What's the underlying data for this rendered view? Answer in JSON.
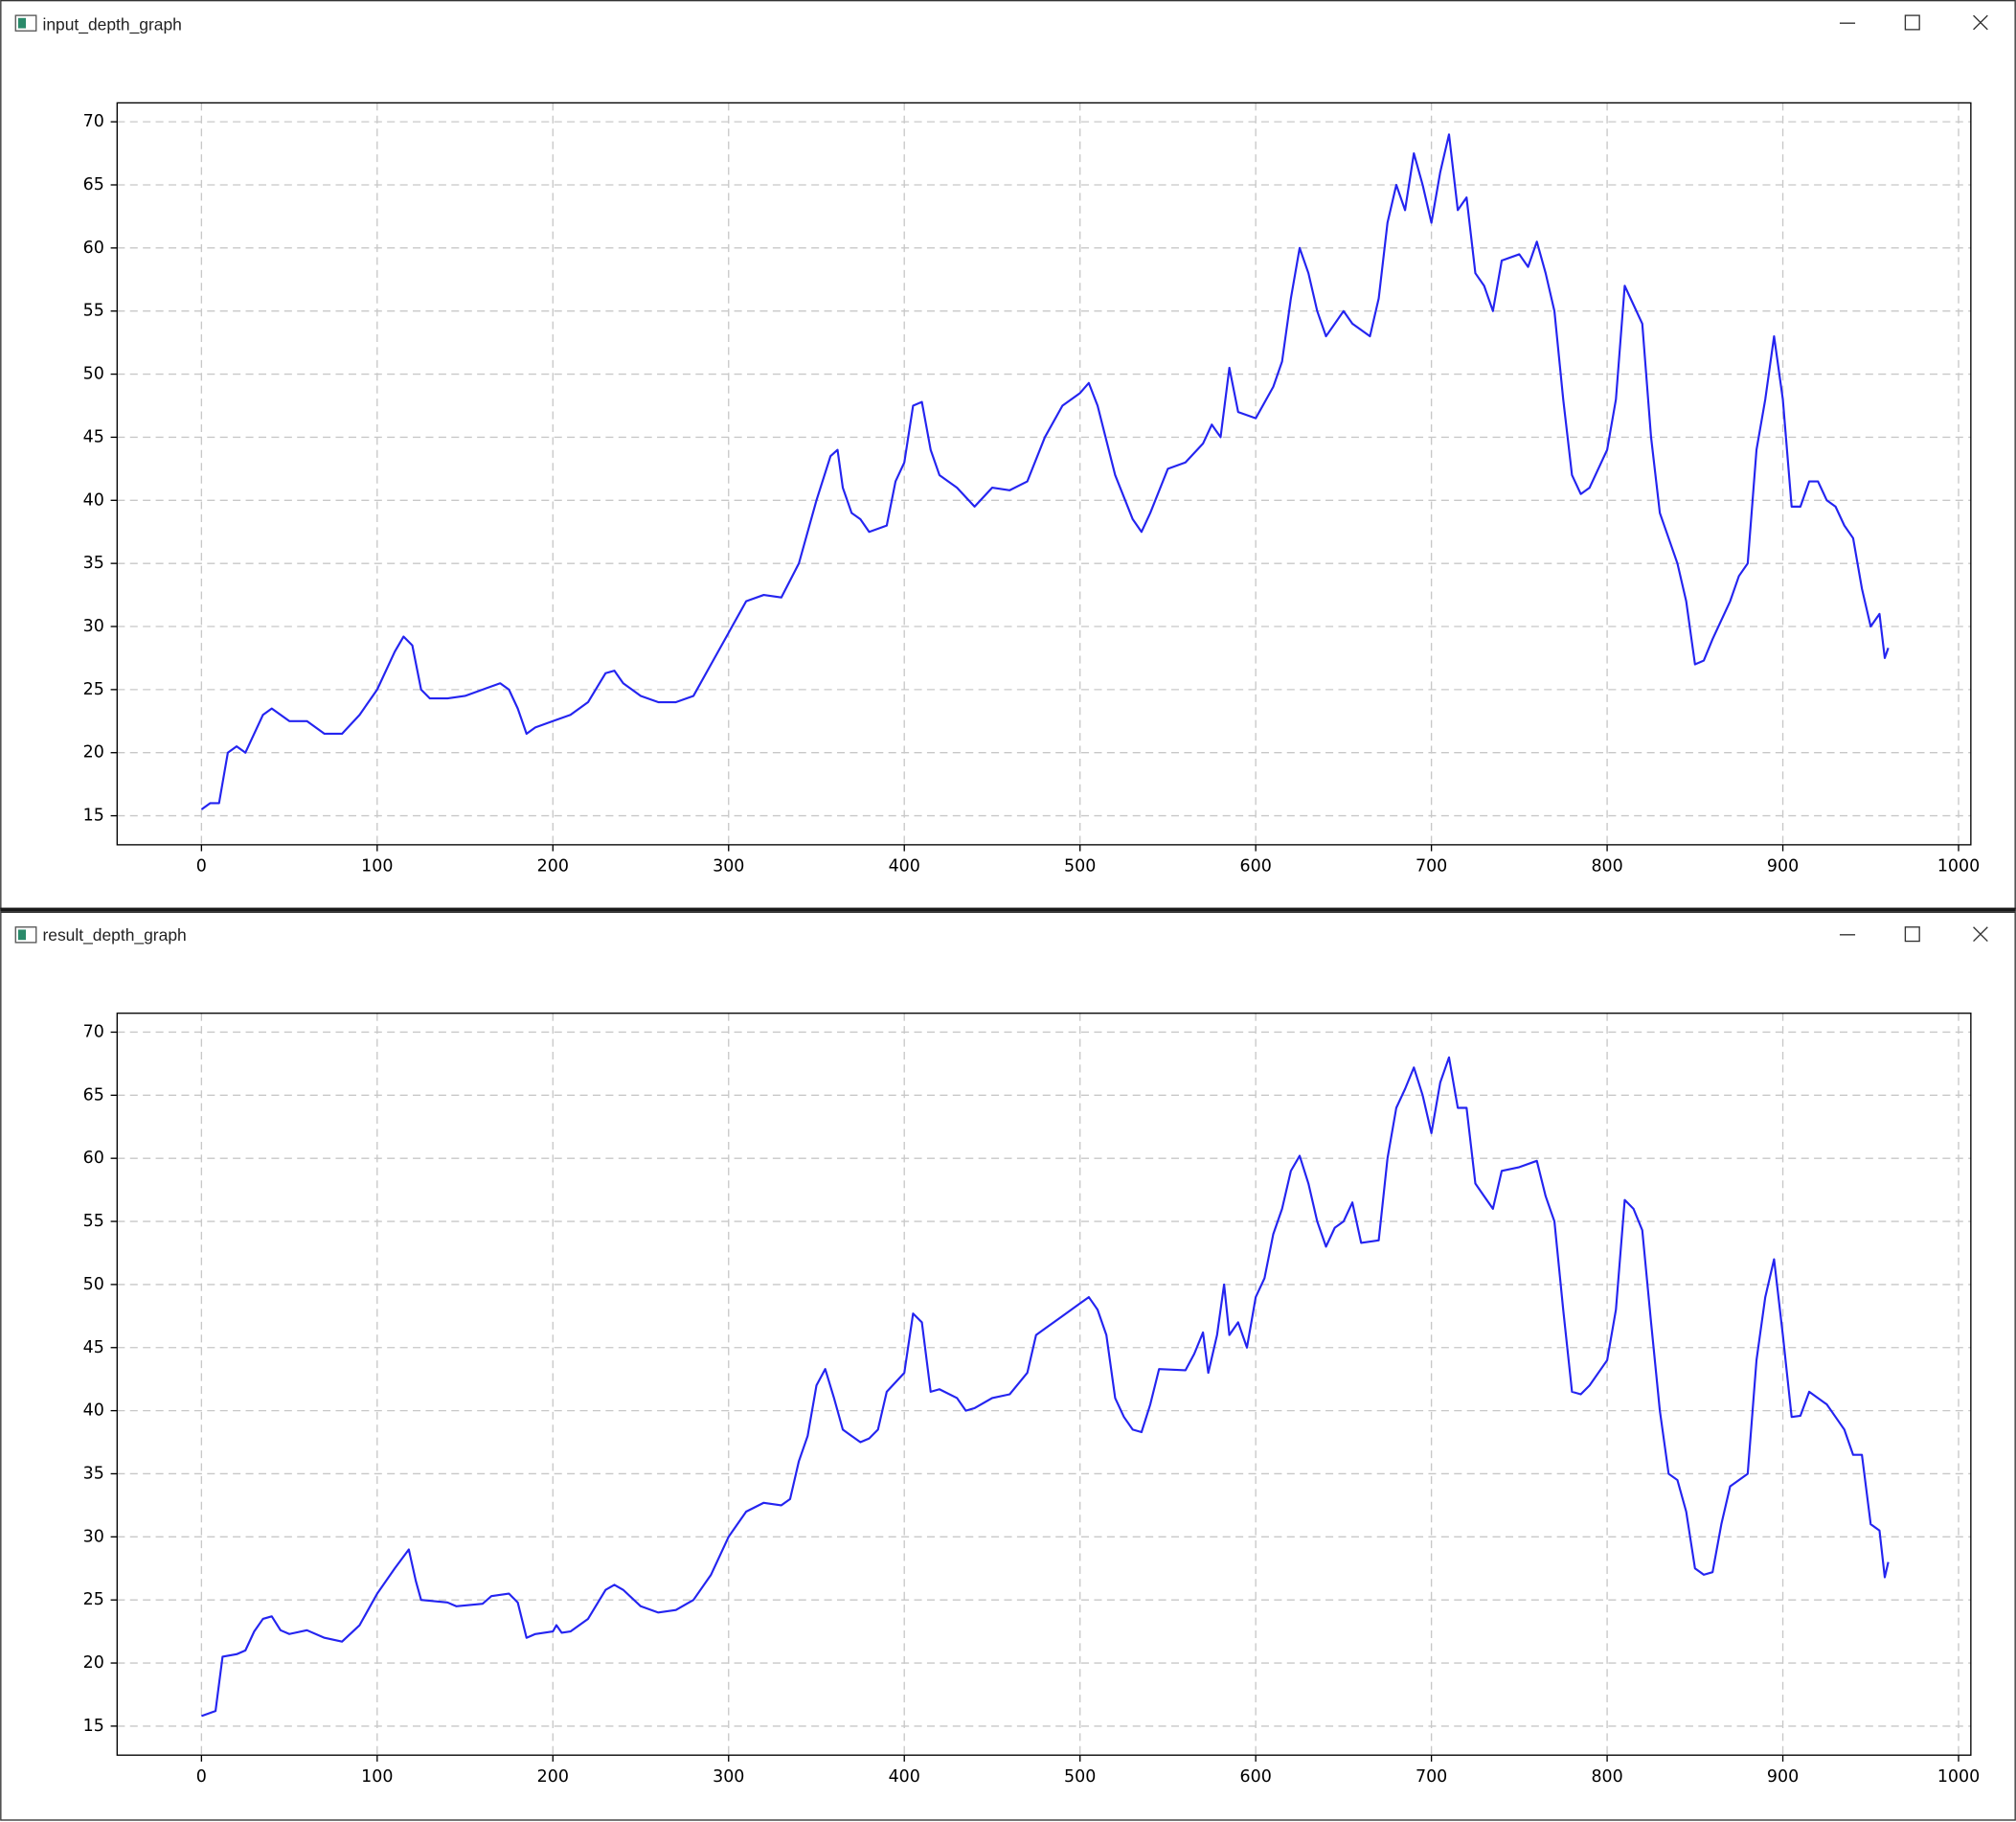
{
  "chart_data": [
    {
      "type": "line",
      "title": "input_depth_graph",
      "color": "#2424f0",
      "grid": true,
      "xlim": [
        -48,
        1007
      ],
      "ylim": [
        12.7,
        71.5
      ],
      "xticks": [
        0,
        100,
        200,
        300,
        400,
        500,
        600,
        700,
        800,
        900,
        1000
      ],
      "yticks": [
        15,
        20,
        25,
        30,
        35,
        40,
        45,
        50,
        55,
        60,
        65,
        70
      ],
      "x": [
        0,
        5,
        10,
        15,
        20,
        25,
        30,
        35,
        40,
        50,
        60,
        70,
        80,
        90,
        100,
        110,
        115,
        120,
        125,
        130,
        140,
        150,
        160,
        170,
        175,
        180,
        185,
        190,
        200,
        210,
        220,
        230,
        235,
        240,
        250,
        260,
        270,
        280,
        290,
        300,
        310,
        320,
        330,
        340,
        350,
        358,
        362,
        365,
        370,
        375,
        380,
        390,
        395,
        400,
        405,
        410,
        415,
        420,
        430,
        440,
        450,
        460,
        470,
        480,
        490,
        500,
        505,
        510,
        520,
        530,
        535,
        540,
        550,
        560,
        570,
        575,
        580,
        585,
        590,
        600,
        610,
        615,
        620,
        625,
        630,
        635,
        640,
        650,
        655,
        665,
        670,
        675,
        680,
        685,
        690,
        695,
        700,
        705,
        710,
        715,
        720,
        725,
        730,
        735,
        740,
        750,
        755,
        760,
        765,
        770,
        775,
        780,
        785,
        790,
        800,
        805,
        810,
        815,
        820,
        825,
        830,
        835,
        840,
        845,
        850,
        855,
        860,
        870,
        875,
        880,
        885,
        890,
        895,
        900,
        905,
        910,
        915,
        920,
        925,
        930,
        935,
        940,
        945,
        950,
        955,
        958,
        960
      ],
      "values": [
        15.5,
        16,
        16,
        20,
        20.5,
        20,
        21.5,
        23,
        23.5,
        22.5,
        22.5,
        21.5,
        21.5,
        23,
        25,
        28,
        29.2,
        28.5,
        25,
        24.3,
        24.3,
        24.5,
        25,
        25.5,
        25,
        23.5,
        21.5,
        22,
        22.5,
        23,
        24,
        26.3,
        26.5,
        25.5,
        24.5,
        24,
        24,
        24.5,
        27,
        29.5,
        32,
        32.5,
        32.3,
        35,
        40,
        43.5,
        44,
        41,
        39,
        38.5,
        37.5,
        38,
        41.5,
        43,
        47.5,
        47.8,
        44,
        42,
        41,
        39.5,
        41,
        40.8,
        41.5,
        45,
        47.5,
        48.5,
        49.3,
        47.5,
        42,
        38.5,
        37.5,
        39,
        42.5,
        43,
        44.5,
        46,
        45,
        50.5,
        47,
        46.5,
        49,
        51,
        56,
        60,
        58,
        55,
        53,
        55,
        54,
        53,
        56,
        62,
        65,
        63,
        67.5,
        65,
        62,
        66,
        69,
        63,
        64,
        58,
        57,
        55,
        59,
        59.5,
        58.5,
        60.5,
        58,
        55,
        48,
        42,
        40.5,
        41,
        44,
        48,
        57,
        55.5,
        54,
        45,
        39,
        37,
        35,
        32,
        27,
        27.3,
        29,
        32,
        34,
        35,
        44,
        48,
        53,
        48,
        39.5,
        39.5,
        41.5,
        41.5,
        40,
        39.5,
        38,
        37,
        33,
        30,
        31,
        27.5,
        28.3
      ]
    },
    {
      "type": "line",
      "title": "result_depth_graph",
      "color": "#2424f0",
      "grid": true,
      "xlim": [
        -48,
        1007
      ],
      "ylim": [
        12.7,
        71.5
      ],
      "xticks": [
        0,
        100,
        200,
        300,
        400,
        500,
        600,
        700,
        800,
        900,
        1000
      ],
      "yticks": [
        15,
        20,
        25,
        30,
        35,
        40,
        45,
        50,
        55,
        60,
        65,
        70
      ],
      "x": [
        0,
        8,
        12,
        20,
        25,
        30,
        35,
        40,
        45,
        50,
        60,
        70,
        80,
        90,
        100,
        110,
        118,
        122,
        125,
        140,
        145,
        160,
        165,
        175,
        180,
        185,
        190,
        200,
        202,
        205,
        210,
        220,
        230,
        235,
        240,
        250,
        260,
        270,
        280,
        290,
        300,
        310,
        320,
        330,
        335,
        340,
        345,
        350,
        355,
        360,
        365,
        370,
        375,
        380,
        385,
        390,
        400,
        405,
        410,
        415,
        420,
        430,
        435,
        440,
        450,
        460,
        470,
        475,
        480,
        490,
        500,
        505,
        510,
        515,
        520,
        525,
        530,
        535,
        540,
        545,
        560,
        565,
        570,
        573,
        578,
        582,
        585,
        590,
        595,
        600,
        605,
        610,
        615,
        620,
        625,
        630,
        635,
        640,
        645,
        650,
        655,
        660,
        670,
        675,
        680,
        685,
        690,
        695,
        700,
        705,
        710,
        715,
        720,
        725,
        730,
        735,
        740,
        750,
        760,
        765,
        770,
        775,
        780,
        785,
        790,
        800,
        805,
        810,
        815,
        820,
        825,
        830,
        835,
        840,
        845,
        850,
        855,
        860,
        865,
        870,
        880,
        885,
        890,
        895,
        900,
        905,
        910,
        915,
        925,
        930,
        935,
        940,
        945,
        950,
        955,
        958,
        960
      ],
      "values": [
        15.8,
        16.2,
        20.5,
        20.7,
        21,
        22.5,
        23.5,
        23.7,
        22.6,
        22.3,
        22.6,
        22,
        21.7,
        23,
        25.5,
        27.5,
        29,
        26.5,
        25,
        24.8,
        24.5,
        24.7,
        25.3,
        25.5,
        24.8,
        22,
        22.3,
        22.5,
        23,
        22.4,
        22.5,
        23.5,
        25.8,
        26.2,
        25.8,
        24.5,
        24,
        24.2,
        25,
        27,
        30,
        32,
        32.7,
        32.5,
        33,
        36,
        38,
        42,
        43.3,
        41,
        38.5,
        38,
        37.5,
        37.8,
        38.5,
        41.5,
        43,
        47.7,
        47,
        41.5,
        41.7,
        41,
        40,
        40.2,
        41,
        41.3,
        43,
        46,
        46.5,
        47.5,
        48.5,
        49,
        48,
        46,
        41,
        39.5,
        38.5,
        38.3,
        40.5,
        43.3,
        43.2,
        44.5,
        46.2,
        43,
        46,
        50,
        46,
        47,
        45,
        49,
        50.5,
        54,
        56,
        59,
        60.2,
        58,
        55,
        53,
        54.5,
        55,
        56.5,
        53.3,
        53.5,
        60,
        64,
        65.5,
        67.2,
        65,
        62,
        66,
        68,
        64,
        64,
        58,
        57,
        56,
        59,
        59.3,
        59.8,
        57,
        55,
        48,
        41.5,
        41.3,
        42,
        44,
        48,
        56.7,
        56,
        54.3,
        47,
        40,
        35,
        34.5,
        32,
        27.5,
        27,
        27.2,
        31,
        34,
        35,
        44,
        49,
        52,
        46,
        39.5,
        39.6,
        41.5,
        40.5,
        39.5,
        38.5,
        36.5,
        36.5,
        31,
        30.5,
        26.8,
        28
      ]
    }
  ]
}
